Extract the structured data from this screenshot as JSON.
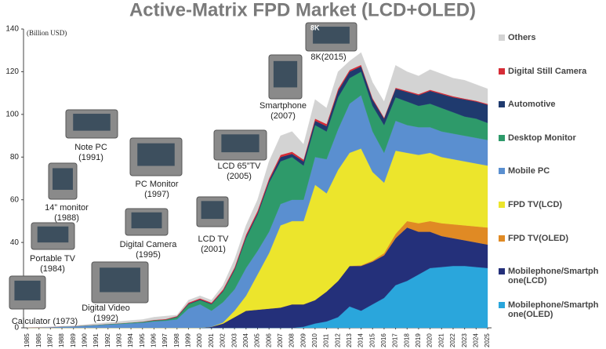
{
  "chart_data": {
    "type": "stacked-area",
    "title": "Active-Matrix FPD Market (LCD+OLED)",
    "y_label": "(Billion USD)",
    "categories": [
      "1985",
      "1986",
      "1987",
      "1988",
      "1989",
      "1990",
      "1991",
      "1992",
      "1993",
      "1994",
      "1995",
      "1996",
      "1997",
      "1998",
      "1999",
      "2000",
      "2001",
      "2002",
      "2003",
      "2004",
      "2005",
      "2006",
      "2007",
      "2008",
      "2009",
      "2010",
      "2011",
      "2012",
      "2013",
      "2014",
      "2015",
      "2016",
      "2017",
      "2018",
      "2019",
      "2020",
      "2021",
      "2022",
      "2023",
      "2024",
      "2025"
    ],
    "ylim": [
      0,
      140
    ],
    "yticks": [
      0,
      20,
      40,
      60,
      80,
      100,
      120,
      140
    ],
    "series": [
      {
        "name": "Mobilephone/Smartphone(OLED)",
        "color": "#2aa6dc",
        "values": [
          0,
          0,
          0,
          0,
          0,
          0,
          0,
          0,
          0,
          0,
          0,
          0,
          0,
          0,
          0,
          0,
          0,
          0,
          0,
          0,
          0,
          0,
          0,
          0,
          0.5,
          2,
          3,
          5,
          10,
          8,
          11,
          14,
          20,
          22,
          25,
          28,
          28.5,
          29,
          29,
          28.5,
          28
        ]
      },
      {
        "name": "Mobilephone/Smartphone(LCD)",
        "color": "#24307a",
        "values": [
          0,
          0,
          0,
          0,
          0,
          0,
          0,
          0,
          0,
          0,
          0,
          0,
          0,
          0,
          0,
          0,
          0.5,
          2,
          5,
          8,
          8.5,
          9,
          9.5,
          11,
          10.5,
          11,
          14,
          17,
          19,
          21,
          20,
          20,
          22,
          25,
          20,
          17,
          14.5,
          13,
          12,
          11.5,
          11
        ]
      },
      {
        "name": "FPD TV(OLED)",
        "color": "#e08a24",
        "values": [
          0,
          0,
          0,
          0,
          0,
          0,
          0,
          0,
          0,
          0,
          0,
          0,
          0,
          0,
          0,
          0,
          0,
          0,
          0,
          0,
          0,
          0,
          0,
          0,
          0,
          0,
          0,
          0,
          0,
          0.3,
          0.5,
          1,
          2,
          3,
          4,
          5,
          6,
          6.5,
          7,
          7.5,
          8
        ]
      },
      {
        "name": "FPD TV(LCD)",
        "color": "#ece52c",
        "values": [
          0,
          0,
          0,
          0,
          0,
          0,
          0,
          0,
          0,
          0,
          0,
          0,
          0,
          0,
          0,
          0,
          0,
          0.5,
          3,
          7,
          16.5,
          26,
          38.5,
          39,
          39,
          54,
          46,
          52,
          53,
          54.7,
          41.5,
          33,
          39,
          32,
          32,
          32,
          31,
          30.5,
          30,
          29.5,
          29
        ]
      },
      {
        "name": "Mobile PC",
        "color": "#5a8fd0",
        "values": [
          0.1,
          0.2,
          0.3,
          0.5,
          0.6,
          0.9,
          1.2,
          1.5,
          1.8,
          2.1,
          2.4,
          3,
          3.3,
          4,
          9,
          11,
          7.5,
          9.5,
          10,
          13,
          11,
          10,
          10,
          10,
          10,
          13,
          16,
          19,
          23,
          25,
          19,
          14,
          14,
          13,
          13,
          12,
          12,
          12,
          12,
          12,
          12
        ]
      },
      {
        "name": "Desktop Monitor",
        "color": "#2e9a6a",
        "values": [
          0,
          0,
          0,
          0.1,
          0.1,
          0.2,
          0.2,
          0.3,
          0.3,
          0.4,
          0.4,
          0.5,
          0.5,
          1,
          2,
          2,
          3,
          5,
          9,
          14,
          17,
          23,
          20,
          20,
          16,
          15,
          13,
          15,
          12,
          11,
          12,
          13,
          11,
          11,
          10,
          11,
          11,
          10,
          9,
          9,
          8
        ]
      },
      {
        "name": "Automotive",
        "color": "#1f3a6e",
        "values": [
          0,
          0,
          0,
          0,
          0,
          0,
          0,
          0,
          0,
          0,
          0,
          0,
          0,
          0.2,
          0.3,
          0.3,
          0.3,
          0.3,
          0.5,
          0.7,
          0.8,
          1,
          2,
          1.5,
          2,
          2,
          2.5,
          3,
          3,
          2.5,
          3,
          3,
          4,
          4.5,
          5,
          6,
          6.5,
          7,
          8,
          8,
          8.5
        ]
      },
      {
        "name": "Digital Still Camera",
        "color": "#d62c36",
        "values": [
          0,
          0,
          0,
          0,
          0,
          0,
          0,
          0,
          0,
          0,
          0.1,
          0.2,
          0.3,
          0.3,
          0.5,
          0.5,
          0.5,
          0.7,
          0.8,
          1,
          1,
          1,
          1,
          1,
          0.8,
          1,
          1,
          1,
          0.8,
          0.7,
          0.6,
          0.5,
          0.5,
          0.5,
          0.5,
          0.5,
          0.5,
          0.5,
          0.4,
          0.4,
          0.4
        ]
      },
      {
        "name": "Others",
        "color": "#d3d3d3",
        "values": [
          0.1,
          0.1,
          0.2,
          0.2,
          0.3,
          0.4,
          0.6,
          0.7,
          0.9,
          1.0,
          1.0,
          1.3,
          1.4,
          0.5,
          1.2,
          1.2,
          1.2,
          2,
          3.7,
          4.3,
          5.2,
          8,
          9,
          9.5,
          7.2,
          9,
          7.5,
          8,
          4.2,
          5.8,
          7.4,
          7.5,
          10.5,
          9,
          8.5,
          9.5,
          9,
          8.5,
          8.6,
          7.6,
          7.1
        ]
      }
    ],
    "annotations": [
      {
        "lines": [
          "Calculator (1973)"
        ]
      },
      {
        "lines": [
          "Portable TV",
          "(1984)"
        ]
      },
      {
        "lines": [
          "14” monitor",
          "(1988)"
        ]
      },
      {
        "lines": [
          "Note PC",
          "(1991)"
        ]
      },
      {
        "lines": [
          "Digital Video",
          "(1992)"
        ]
      },
      {
        "lines": [
          "Digital Camera",
          "(1995)"
        ]
      },
      {
        "lines": [
          "PC Monitor",
          "(1997)"
        ]
      },
      {
        "lines": [
          "LCD TV",
          "(2001)"
        ]
      },
      {
        "lines": [
          "LCD 65”TV",
          "(2005)"
        ]
      },
      {
        "lines": [
          "Smartphone",
          "(2007)"
        ]
      },
      {
        "lines": [
          "8K(2015)"
        ],
        "badge": "8K"
      }
    ]
  }
}
